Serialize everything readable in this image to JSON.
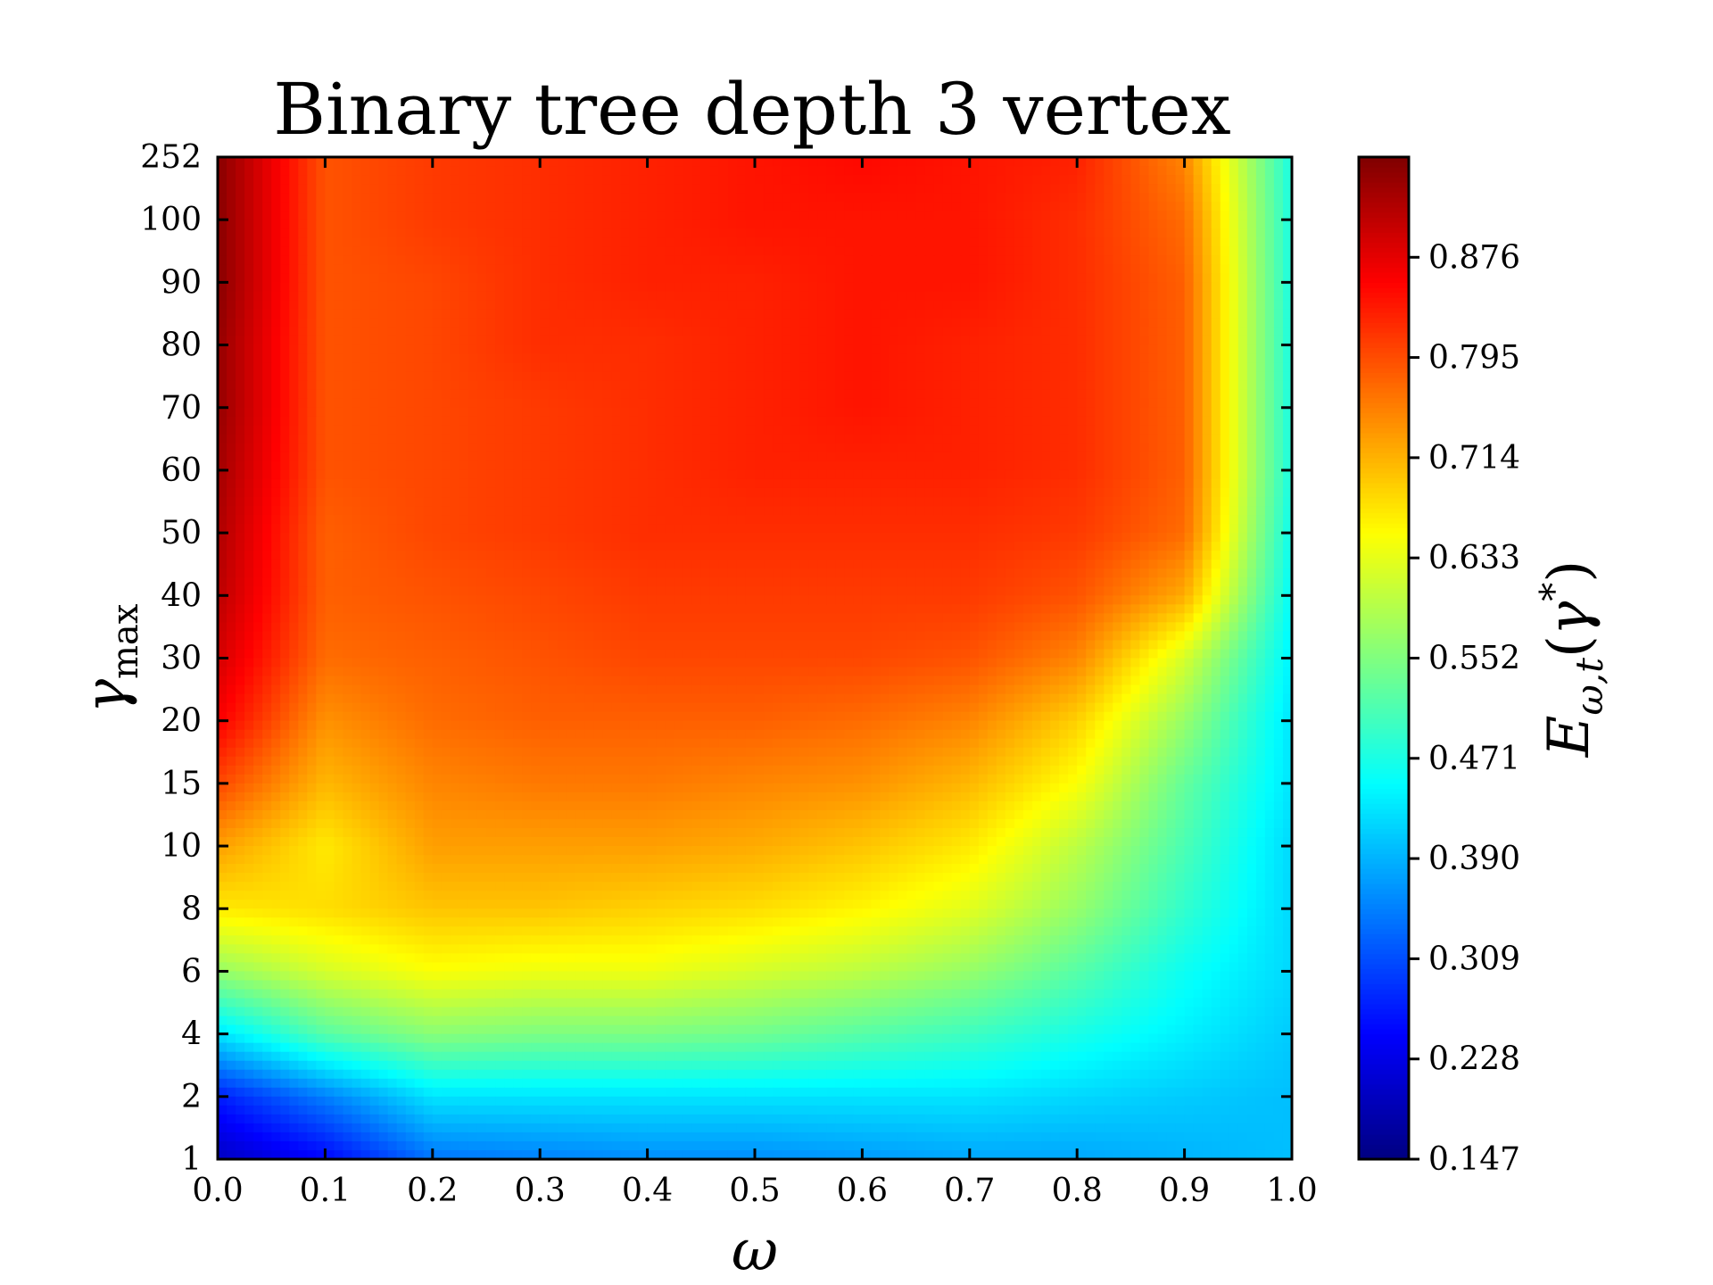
{
  "chart_data": {
    "type": "heatmap",
    "title": "Binary tree depth 3 vertex",
    "xlabel": "ω",
    "ylabel": "γ_max",
    "colorbar_label": "E_ω,t(γ*)",
    "colormap": "jet",
    "x": [
      0.0,
      0.1,
      0.2,
      0.3,
      0.4,
      0.5,
      0.6,
      0.7,
      0.8,
      0.9,
      1.0
    ],
    "x_tick_labels": [
      "0.0",
      "0.1",
      "0.2",
      "0.3",
      "0.4",
      "0.5",
      "0.6",
      "0.7",
      "0.8",
      "0.9",
      "1.0"
    ],
    "y": [
      1,
      2,
      4,
      6,
      8,
      10,
      15,
      20,
      30,
      40,
      50,
      60,
      70,
      80,
      90,
      100,
      252
    ],
    "y_tick_labels": [
      "1",
      "2",
      "4",
      "6",
      "8",
      "10",
      "15",
      "20",
      "30",
      "40",
      "50",
      "60",
      "70",
      "80",
      "90",
      "100",
      "252"
    ],
    "z": [
      [
        0.2,
        0.25,
        0.34,
        0.35,
        0.36,
        0.36,
        0.37,
        0.38,
        0.38,
        0.39,
        0.4
      ],
      [
        0.27,
        0.35,
        0.43,
        0.43,
        0.43,
        0.43,
        0.43,
        0.43,
        0.42,
        0.41,
        0.4
      ],
      [
        0.43,
        0.52,
        0.56,
        0.55,
        0.55,
        0.54,
        0.52,
        0.5,
        0.47,
        0.44,
        0.41
      ],
      [
        0.57,
        0.62,
        0.65,
        0.64,
        0.64,
        0.62,
        0.6,
        0.57,
        0.52,
        0.46,
        0.42
      ],
      [
        0.67,
        0.68,
        0.7,
        0.7,
        0.69,
        0.68,
        0.66,
        0.63,
        0.57,
        0.49,
        0.42
      ],
      [
        0.73,
        0.67,
        0.73,
        0.73,
        0.73,
        0.72,
        0.7,
        0.67,
        0.6,
        0.51,
        0.42
      ],
      [
        0.8,
        0.71,
        0.75,
        0.76,
        0.76,
        0.75,
        0.74,
        0.71,
        0.65,
        0.53,
        0.43
      ],
      [
        0.86,
        0.74,
        0.77,
        0.78,
        0.78,
        0.78,
        0.77,
        0.75,
        0.69,
        0.57,
        0.43
      ],
      [
        0.89,
        0.77,
        0.78,
        0.79,
        0.8,
        0.8,
        0.8,
        0.79,
        0.75,
        0.62,
        0.44
      ],
      [
        0.91,
        0.78,
        0.79,
        0.8,
        0.81,
        0.81,
        0.81,
        0.81,
        0.79,
        0.72,
        0.45
      ],
      [
        0.92,
        0.78,
        0.8,
        0.81,
        0.82,
        0.82,
        0.82,
        0.82,
        0.81,
        0.77,
        0.46
      ],
      [
        0.93,
        0.79,
        0.8,
        0.81,
        0.82,
        0.83,
        0.83,
        0.83,
        0.82,
        0.78,
        0.47
      ],
      [
        0.94,
        0.79,
        0.8,
        0.81,
        0.82,
        0.83,
        0.84,
        0.83,
        0.82,
        0.78,
        0.47
      ],
      [
        0.94,
        0.79,
        0.8,
        0.82,
        0.82,
        0.83,
        0.84,
        0.83,
        0.82,
        0.78,
        0.47
      ],
      [
        0.95,
        0.79,
        0.8,
        0.82,
        0.83,
        0.83,
        0.84,
        0.84,
        0.82,
        0.78,
        0.47
      ],
      [
        0.95,
        0.79,
        0.81,
        0.82,
        0.83,
        0.84,
        0.84,
        0.84,
        0.82,
        0.77,
        0.47
      ],
      [
        0.95,
        0.79,
        0.81,
        0.82,
        0.83,
        0.84,
        0.85,
        0.84,
        0.83,
        0.75,
        0.47
      ]
    ],
    "color_range": [
      0.147,
      0.957
    ],
    "colorbar_ticks": [
      0.147,
      0.228,
      0.309,
      0.39,
      0.471,
      0.552,
      0.633,
      0.714,
      0.795,
      0.876
    ],
    "colorbar_tick_labels": [
      "0.147",
      "0.228",
      "0.309",
      "0.390",
      "0.471",
      "0.552",
      "0.633",
      "0.714",
      "0.795",
      "0.876"
    ],
    "grid": false
  }
}
